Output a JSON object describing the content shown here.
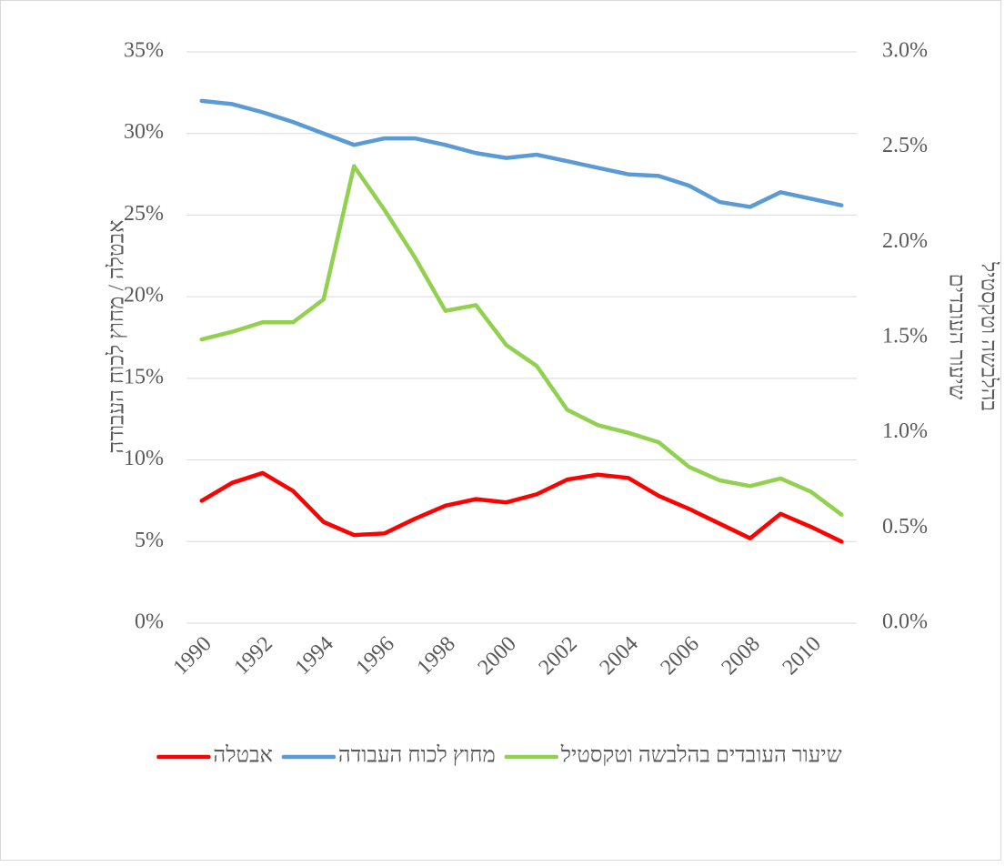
{
  "chart_data": {
    "type": "line",
    "x": [
      1990,
      1991,
      1992,
      1993,
      1994,
      1995,
      1996,
      1997,
      1998,
      1999,
      2000,
      2001,
      2002,
      2003,
      2004,
      2005,
      2006,
      2007,
      2008,
      2009,
      2010,
      2011
    ],
    "xlim": [
      1989.5,
      2011.5
    ],
    "xticks": [
      1990,
      1992,
      1994,
      1996,
      1998,
      2000,
      2002,
      2004,
      2006,
      2008,
      2010
    ],
    "ylabel": "אבטלה / מחוץ לכוח העבודה",
    "y2label": [
      "שיעור העובדים",
      "בהלבשה וטקסטיל"
    ],
    "ylim": [
      0,
      35
    ],
    "yticks": [
      {
        "value": 0,
        "label": "0%"
      },
      {
        "value": 5,
        "label": "5%"
      },
      {
        "value": 10,
        "label": "10%"
      },
      {
        "value": 15,
        "label": "15%"
      },
      {
        "value": 20,
        "label": "20%"
      },
      {
        "value": 25,
        "label": "25%"
      },
      {
        "value": 30,
        "label": "30%"
      },
      {
        "value": 35,
        "label": "35%"
      }
    ],
    "y2lim": [
      0,
      3
    ],
    "y2ticks": [
      {
        "value": 0,
        "label": "0.0%"
      },
      {
        "value": 0.5,
        "label": "0.5%"
      },
      {
        "value": 1,
        "label": "1.0%"
      },
      {
        "value": 1.5,
        "label": "1.5%"
      },
      {
        "value": 2,
        "label": "2.0%"
      },
      {
        "value": 2.5,
        "label": "2.5%"
      },
      {
        "value": 3,
        "label": "3.0%"
      }
    ],
    "grid": true,
    "legend": "bottom",
    "series": [
      {
        "name": "אבטלה",
        "color": "#ff0000",
        "values": [
          7.5,
          8.6,
          9.2,
          8.1,
          6.2,
          5.4,
          5.5,
          6.4,
          7.2,
          7.6,
          7.4,
          7.9,
          8.8,
          9.1,
          8.9,
          7.8,
          7.0,
          6.1,
          5.2,
          6.7,
          5.9,
          5.0
        ]
      },
      {
        "name": "מחוץ לכוח העבודה",
        "color": "#5b9bd5",
        "values": [
          32.0,
          31.8,
          31.3,
          30.7,
          30.0,
          29.3,
          29.7,
          29.7,
          29.3,
          28.8,
          28.5,
          28.7,
          28.3,
          27.9,
          27.5,
          27.4,
          26.8,
          25.8,
          25.5,
          26.4,
          26.0,
          25.6
        ]
      },
      {
        "name": "שיעור העובדים בהלבשה וטקסטיל",
        "color": "#92d050",
        "axis": "y2",
        "values": [
          1.49,
          1.53,
          1.58,
          1.58,
          1.7,
          2.4,
          2.17,
          1.92,
          1.64,
          1.67,
          1.46,
          1.35,
          1.12,
          1.04,
          1.0,
          0.95,
          0.82,
          0.75,
          0.72,
          0.76,
          0.69,
          0.57
        ]
      }
    ]
  }
}
